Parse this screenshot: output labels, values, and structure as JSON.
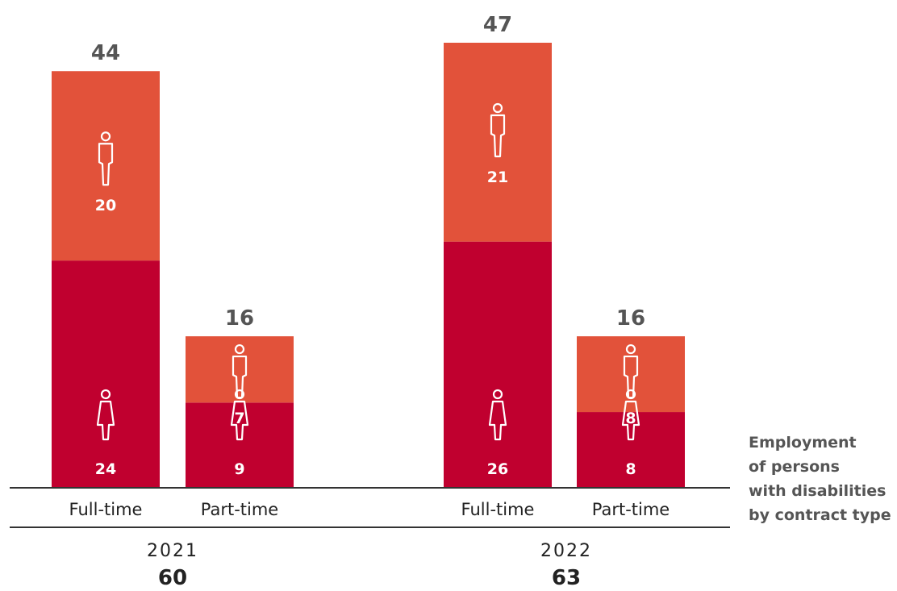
{
  "chart_data": {
    "type": "bar",
    "stacked": true,
    "title": "",
    "caption": [
      "Employment",
      "of persons",
      "with disabilities",
      "by contract type"
    ],
    "groups": [
      {
        "year": "2021",
        "total": "60",
        "bars": [
          {
            "category": "Full-time",
            "women": 24,
            "men": 20,
            "total": 44
          },
          {
            "category": "Part-time",
            "women": 9,
            "men": 7,
            "total": 16
          }
        ]
      },
      {
        "year": "2022",
        "total": "63",
        "bars": [
          {
            "category": "Full-time",
            "women": 26,
            "men": 21,
            "total": 47
          },
          {
            "category": "Part-time",
            "women": 8,
            "men": 8,
            "total": 16
          }
        ]
      }
    ],
    "colors": {
      "women": "#c0002f",
      "men": "#e2523a"
    },
    "icons": {
      "women": "woman-icon",
      "men": "man-icon"
    },
    "ylim": [
      0,
      47
    ]
  }
}
